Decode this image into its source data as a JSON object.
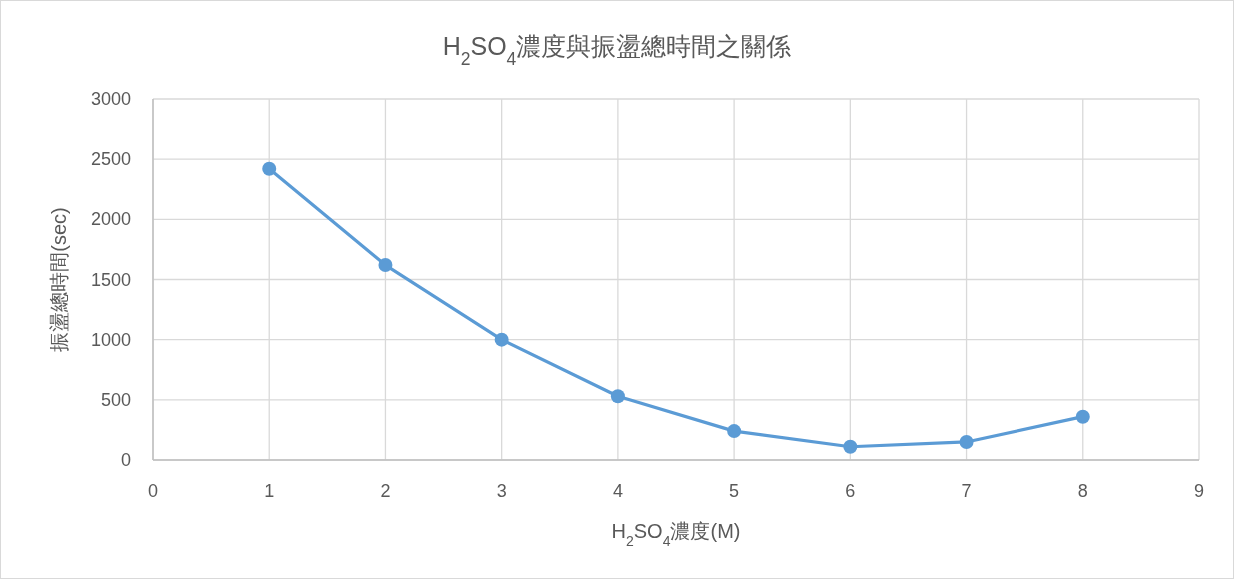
{
  "chart_data": {
    "type": "line",
    "title": "H$_{2}$SO$_{4}$濃度與振盪總時間之關係",
    "xlabel": "H$_{2}$SO$_{4}$濃度(M)",
    "ylabel": "振盪總時間(sec)",
    "x": [
      1,
      2,
      3,
      4,
      5,
      6,
      7,
      8
    ],
    "series": [
      {
        "color": "#5b9bd5",
        "values": [
          2420,
          1620,
          1000,
          530,
          240,
          110,
          150,
          360
        ]
      }
    ],
    "xlim": [
      0,
      9
    ],
    "xticks": [
      0,
      1,
      2,
      3,
      4,
      5,
      6,
      7,
      8,
      9
    ],
    "ylim": [
      0,
      3000
    ],
    "yticks": [
      0,
      500,
      1000,
      1500,
      2000,
      2500,
      3000
    ],
    "grid": true,
    "marker": "circle",
    "line_style": "solid"
  }
}
